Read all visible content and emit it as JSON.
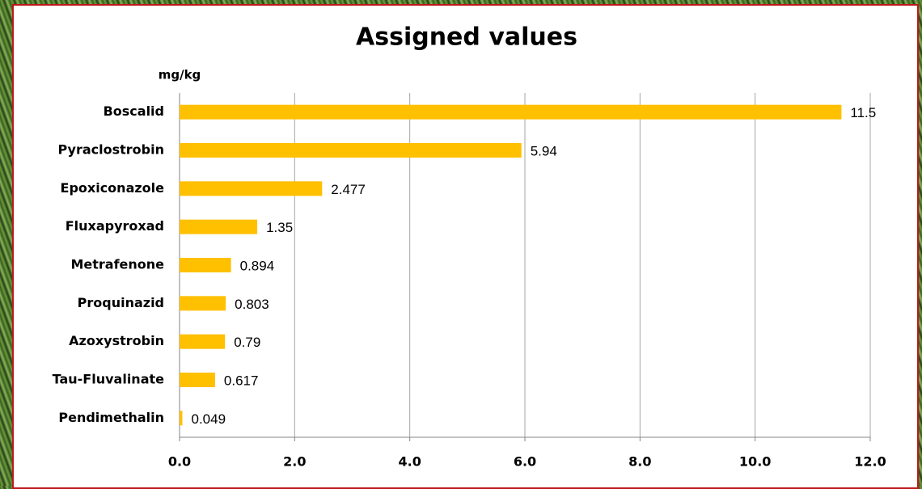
{
  "chart_data": {
    "type": "bar",
    "orientation": "horizontal",
    "title": "Assigned values",
    "xlabel": "mg/kg",
    "categories": [
      "Boscalid",
      "Pyraclostrobin",
      "Epoxiconazole",
      "Fluxapyroxad",
      "Metrafenone",
      "Proquinazid",
      "Azoxystrobin",
      "Tau-Fluvalinate",
      "Pendimethalin"
    ],
    "values": [
      11.5,
      5.94,
      2.477,
      1.35,
      0.894,
      0.803,
      0.79,
      0.617,
      0.049
    ],
    "color": "#ffc000",
    "xlim": [
      0,
      12
    ],
    "xticks": [
      {
        "value": 0,
        "label": "0.0"
      },
      {
        "value": 2,
        "label": "2.0"
      },
      {
        "value": 4,
        "label": "4.0"
      },
      {
        "value": 6,
        "label": "6.0"
      },
      {
        "value": 8,
        "label": "8.0"
      },
      {
        "value": 10,
        "label": "10.0"
      },
      {
        "value": 12,
        "label": "12.0"
      }
    ],
    "grid": true
  }
}
